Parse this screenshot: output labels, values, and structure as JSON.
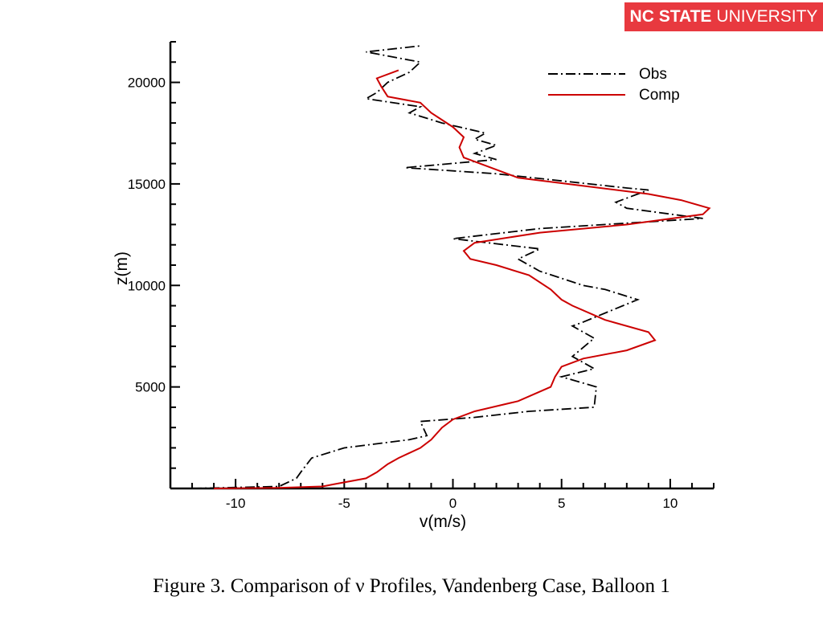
{
  "brand": {
    "part1": "NC STATE",
    "part2": "UNIVERSITY",
    "color": "#e8393f"
  },
  "caption": "Figure 3.  Comparison of ν Profiles, Vandenberg Case, Balloon 1",
  "chart_data": {
    "type": "line",
    "title": "",
    "xlabel": "v(m/s)",
    "ylabel": "z(m)",
    "xlim": [
      -13,
      12
    ],
    "ylim": [
      0,
      22000
    ],
    "xticks": [
      -10,
      -5,
      0,
      5,
      10
    ],
    "yticks": [
      5000,
      10000,
      15000,
      20000
    ],
    "grid": false,
    "legend": "top-right",
    "series": [
      {
        "name": "Obs",
        "color": "#000000",
        "style": "dashdot",
        "points": [
          [
            -12,
            0
          ],
          [
            -8,
            100
          ],
          [
            -7.2,
            500
          ],
          [
            -7,
            800
          ],
          [
            -6.5,
            1500
          ],
          [
            -5,
            2000
          ],
          [
            -2,
            2400
          ],
          [
            -1.2,
            2600
          ],
          [
            -1.5,
            3300
          ],
          [
            1,
            3500
          ],
          [
            3.5,
            3800
          ],
          [
            6.5,
            4000
          ],
          [
            6.6,
            5000
          ],
          [
            5,
            5500
          ],
          [
            6.5,
            5900
          ],
          [
            5.5,
            6500
          ],
          [
            6.5,
            7400
          ],
          [
            5.5,
            8000
          ],
          [
            6,
            8200
          ],
          [
            8.5,
            9300
          ],
          [
            7,
            9800
          ],
          [
            6,
            10000
          ],
          [
            4,
            10700
          ],
          [
            3,
            11300
          ],
          [
            4,
            11800
          ],
          [
            0,
            12300
          ],
          [
            4,
            12800
          ],
          [
            11.5,
            13300
          ],
          [
            8,
            13800
          ],
          [
            7.5,
            14100
          ],
          [
            9,
            14700
          ],
          [
            8,
            14800
          ],
          [
            2,
            15500
          ],
          [
            -2.2,
            15800
          ],
          [
            2,
            16200
          ],
          [
            1,
            16500
          ],
          [
            2,
            16900
          ],
          [
            1,
            17200
          ],
          [
            1.5,
            17500
          ],
          [
            -0.5,
            18000
          ],
          [
            -2,
            18500
          ],
          [
            -1.5,
            18800
          ],
          [
            -4,
            19200
          ],
          [
            -3.5,
            19500
          ],
          [
            -3,
            20000
          ],
          [
            -2,
            20500
          ],
          [
            -1.5,
            21000
          ],
          [
            -4,
            21500
          ],
          [
            -1.5,
            21800
          ]
        ]
      },
      {
        "name": "Comp",
        "color": "#cc0000",
        "style": "solid",
        "points": [
          [
            -11,
            0
          ],
          [
            -8,
            30
          ],
          [
            -6,
            100
          ],
          [
            -5.5,
            200
          ],
          [
            -4,
            500
          ],
          [
            -3.5,
            800
          ],
          [
            -3,
            1200
          ],
          [
            -2.5,
            1500
          ],
          [
            -1.5,
            2000
          ],
          [
            -1,
            2400
          ],
          [
            -0.5,
            3000
          ],
          [
            0,
            3400
          ],
          [
            1,
            3800
          ],
          [
            3,
            4300
          ],
          [
            4.5,
            5000
          ],
          [
            4.7,
            5500
          ],
          [
            5,
            6000
          ],
          [
            6,
            6400
          ],
          [
            8,
            6800
          ],
          [
            9.3,
            7300
          ],
          [
            9,
            7700
          ],
          [
            7,
            8300
          ],
          [
            5.5,
            9000
          ],
          [
            5,
            9300
          ],
          [
            4.5,
            9800
          ],
          [
            3.5,
            10500
          ],
          [
            2,
            11000
          ],
          [
            0.8,
            11300
          ],
          [
            0.5,
            11700
          ],
          [
            1,
            12100
          ],
          [
            4,
            12600
          ],
          [
            8,
            13000
          ],
          [
            11.5,
            13500
          ],
          [
            11.8,
            13800
          ],
          [
            10.5,
            14200
          ],
          [
            9,
            14500
          ],
          [
            6,
            14900
          ],
          [
            3,
            15300
          ],
          [
            2,
            15700
          ],
          [
            0.5,
            16300
          ],
          [
            0.3,
            16800
          ],
          [
            0.5,
            17300
          ],
          [
            0,
            17800
          ],
          [
            -1,
            18500
          ],
          [
            -1.5,
            19000
          ],
          [
            -3,
            19300
          ],
          [
            -3.3,
            19800
          ],
          [
            -3.5,
            20200
          ],
          [
            -2.5,
            20600
          ]
        ]
      }
    ]
  }
}
